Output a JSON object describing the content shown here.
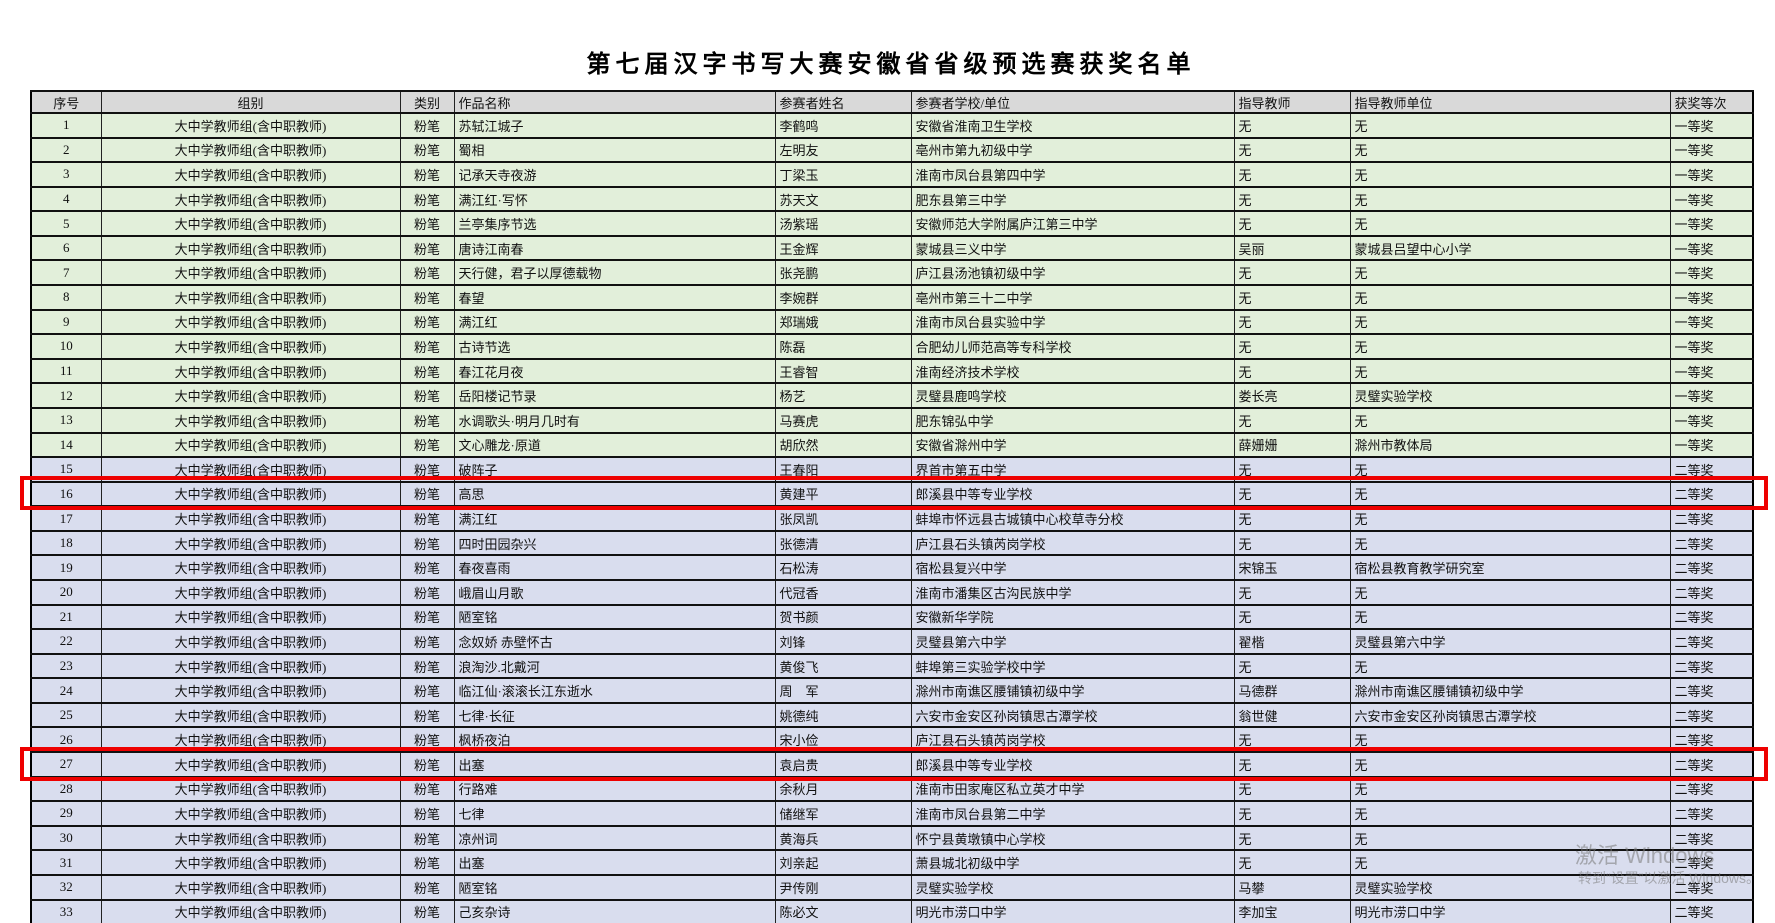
{
  "page_title": "第七届汉字书写大赛安徽省省级预选赛获奖名单",
  "colors": {
    "header_bg": "#d9d9d9",
    "first_prize_bg": "#e2efda",
    "second_prize_bg": "#d9ddee",
    "highlight_border": "#ee0000"
  },
  "watermark": {
    "line1": "激活 Windows",
    "line2": "转到“设置”以激活 Windows。"
  },
  "highlighted_rows": [
    16,
    27
  ],
  "table": {
    "columns": [
      {
        "key": "no",
        "label": "序号"
      },
      {
        "key": "group",
        "label": "组别"
      },
      {
        "key": "category",
        "label": "类别"
      },
      {
        "key": "work",
        "label": "作品名称"
      },
      {
        "key": "name",
        "label": "参赛者姓名"
      },
      {
        "key": "school",
        "label": "参赛者学校/单位"
      },
      {
        "key": "teacher",
        "label": "指导教师"
      },
      {
        "key": "teacher_unit",
        "label": "指导教师单位"
      },
      {
        "key": "award",
        "label": "获奖等次"
      }
    ],
    "rows": [
      {
        "no": "1",
        "group": "大中学教师组(含中职教师)",
        "category": "粉笔",
        "work": "苏轼江城子",
        "name": "李鹤鸣",
        "school": "安徽省淮南卫生学校",
        "teacher": "无",
        "teacher_unit": "无",
        "award": "一等奖"
      },
      {
        "no": "2",
        "group": "大中学教师组(含中职教师)",
        "category": "粉笔",
        "work": "蜀相",
        "name": "左明友",
        "school": "亳州市第九初级中学",
        "teacher": "无",
        "teacher_unit": "无",
        "award": "一等奖"
      },
      {
        "no": "3",
        "group": "大中学教师组(含中职教师)",
        "category": "粉笔",
        "work": "记承天寺夜游",
        "name": "丁梁玉",
        "school": "淮南市凤台县第四中学",
        "teacher": "无",
        "teacher_unit": "无",
        "award": "一等奖"
      },
      {
        "no": "4",
        "group": "大中学教师组(含中职教师)",
        "category": "粉笔",
        "work": "满江红·写怀",
        "name": "苏天文",
        "school": "肥东县第三中学",
        "teacher": "无",
        "teacher_unit": "无",
        "award": "一等奖"
      },
      {
        "no": "5",
        "group": "大中学教师组(含中职教师)",
        "category": "粉笔",
        "work": "兰亭集序节选",
        "name": "汤紫瑶",
        "school": "安徽师范大学附属庐江第三中学",
        "teacher": "无",
        "teacher_unit": "无",
        "award": "一等奖"
      },
      {
        "no": "6",
        "group": "大中学教师组(含中职教师)",
        "category": "粉笔",
        "work": "唐诗江南春",
        "name": "王金辉",
        "school": "蒙城县三义中学",
        "teacher": "吴丽",
        "teacher_unit": "蒙城县吕望中心小学",
        "award": "一等奖"
      },
      {
        "no": "7",
        "group": "大中学教师组(含中职教师)",
        "category": "粉笔",
        "work": "天行健，君子以厚德载物",
        "name": "张尧鹏",
        "school": "庐江县汤池镇初级中学",
        "teacher": "无",
        "teacher_unit": "无",
        "award": "一等奖"
      },
      {
        "no": "8",
        "group": "大中学教师组(含中职教师)",
        "category": "粉笔",
        "work": "春望",
        "name": "李婉群",
        "school": "亳州市第三十二中学",
        "teacher": "无",
        "teacher_unit": "无",
        "award": "一等奖"
      },
      {
        "no": "9",
        "group": "大中学教师组(含中职教师)",
        "category": "粉笔",
        "work": "满江红",
        "name": "郑瑞娥",
        "school": "淮南市凤台县实验中学",
        "teacher": "无",
        "teacher_unit": "无",
        "award": "一等奖"
      },
      {
        "no": "10",
        "group": "大中学教师组(含中职教师)",
        "category": "粉笔",
        "work": "古诗节选",
        "name": "陈磊",
        "school": "合肥幼儿师范高等专科学校",
        "teacher": "无",
        "teacher_unit": "无",
        "award": "一等奖"
      },
      {
        "no": "11",
        "group": "大中学教师组(含中职教师)",
        "category": "粉笔",
        "work": "春江花月夜",
        "name": "王睿智",
        "school": "淮南经济技术学校",
        "teacher": "无",
        "teacher_unit": "无",
        "award": "一等奖"
      },
      {
        "no": "12",
        "group": "大中学教师组(含中职教师)",
        "category": "粉笔",
        "work": "岳阳楼记节录",
        "name": "杨艺",
        "school": "灵璧县鹿鸣学校",
        "teacher": "娄长亮",
        "teacher_unit": "灵璧实验学校",
        "award": "一等奖"
      },
      {
        "no": "13",
        "group": "大中学教师组(含中职教师)",
        "category": "粉笔",
        "work": "水调歌头·明月几时有",
        "name": "马赛虎",
        "school": "肥东锦弘中学",
        "teacher": "无",
        "teacher_unit": "无",
        "award": "一等奖"
      },
      {
        "no": "14",
        "group": "大中学教师组(含中职教师)",
        "category": "粉笔",
        "work": "文心雕龙·原道",
        "name": "胡欣然",
        "school": "安徽省滁州中学",
        "teacher": "薛姗姗",
        "teacher_unit": "滁州市教体局",
        "award": "一等奖"
      },
      {
        "no": "15",
        "group": "大中学教师组(含中职教师)",
        "category": "粉笔",
        "work": "破阵子",
        "name": "王春阳",
        "school": "界首市第五中学",
        "teacher": "无",
        "teacher_unit": "无",
        "award": "二等奖"
      },
      {
        "no": "16",
        "group": "大中学教师组(含中职教师)",
        "category": "粉笔",
        "work": "高思",
        "name": "黄建平",
        "school": "郎溪县中等专业学校",
        "teacher": "无",
        "teacher_unit": "无",
        "award": "二等奖"
      },
      {
        "no": "17",
        "group": "大中学教师组(含中职教师)",
        "category": "粉笔",
        "work": "满江红",
        "name": "张凤凯",
        "school": "蚌埠市怀远县古城镇中心校草寺分校",
        "teacher": "无",
        "teacher_unit": "无",
        "award": "二等奖"
      },
      {
        "no": "18",
        "group": "大中学教师组(含中职教师)",
        "category": "粉笔",
        "work": "四时田园杂兴",
        "name": "张德清",
        "school": "庐江县石头镇芮岗学校",
        "teacher": "无",
        "teacher_unit": "无",
        "award": "二等奖"
      },
      {
        "no": "19",
        "group": "大中学教师组(含中职教师)",
        "category": "粉笔",
        "work": "春夜喜雨",
        "name": "石松涛",
        "school": "宿松县复兴中学",
        "teacher": "宋锦玉",
        "teacher_unit": "宿松县教育教学研究室",
        "award": "二等奖"
      },
      {
        "no": "20",
        "group": "大中学教师组(含中职教师)",
        "category": "粉笔",
        "work": "峨眉山月歌",
        "name": "代冠香",
        "school": "淮南市潘集区古沟民族中学",
        "teacher": "无",
        "teacher_unit": "无",
        "award": "二等奖"
      },
      {
        "no": "21",
        "group": "大中学教师组(含中职教师)",
        "category": "粉笔",
        "work": "陋室铭",
        "name": "贺书颜",
        "school": "安徽新华学院",
        "teacher": "无",
        "teacher_unit": "无",
        "award": "二等奖"
      },
      {
        "no": "22",
        "group": "大中学教师组(含中职教师)",
        "category": "粉笔",
        "work": "念奴娇 赤壁怀古",
        "name": "刘锋",
        "school": "灵璧县第六中学",
        "teacher": "翟楷",
        "teacher_unit": "灵璧县第六中学",
        "award": "二等奖"
      },
      {
        "no": "23",
        "group": "大中学教师组(含中职教师)",
        "category": "粉笔",
        "work": "浪淘沙.北戴河",
        "name": "黄俊飞",
        "school": "蚌埠第三实验学校中学",
        "teacher": "无",
        "teacher_unit": "无",
        "award": "二等奖"
      },
      {
        "no": "24",
        "group": "大中学教师组(含中职教师)",
        "category": "粉笔",
        "work": "临江仙·滚滚长江东逝水",
        "name": "周　军",
        "school": "滁州市南谯区腰铺镇初级中学",
        "teacher": "马德群",
        "teacher_unit": "滁州市南谯区腰铺镇初级中学",
        "award": "二等奖"
      },
      {
        "no": "25",
        "group": "大中学教师组(含中职教师)",
        "category": "粉笔",
        "work": "七律·长征",
        "name": "姚德纯",
        "school": "六安市金安区孙岗镇思古潭学校",
        "teacher": "翁世健",
        "teacher_unit": "六安市金安区孙岗镇思古潭学校",
        "award": "二等奖"
      },
      {
        "no": "26",
        "group": "大中学教师组(含中职教师)",
        "category": "粉笔",
        "work": "枫桥夜泊",
        "name": "宋小俭",
        "school": "庐江县石头镇芮岗学校",
        "teacher": "无",
        "teacher_unit": "无",
        "award": "二等奖"
      },
      {
        "no": "27",
        "group": "大中学教师组(含中职教师)",
        "category": "粉笔",
        "work": "出塞",
        "name": "袁启贵",
        "school": "郎溪县中等专业学校",
        "teacher": "无",
        "teacher_unit": "无",
        "award": "二等奖"
      },
      {
        "no": "28",
        "group": "大中学教师组(含中职教师)",
        "category": "粉笔",
        "work": "行路难",
        "name": "余秋月",
        "school": "淮南市田家庵区私立英才中学",
        "teacher": "无",
        "teacher_unit": "无",
        "award": "二等奖"
      },
      {
        "no": "29",
        "group": "大中学教师组(含中职教师)",
        "category": "粉笔",
        "work": "七律",
        "name": "储继军",
        "school": "淮南市凤台县第二中学",
        "teacher": "无",
        "teacher_unit": "无",
        "award": "二等奖"
      },
      {
        "no": "30",
        "group": "大中学教师组(含中职教师)",
        "category": "粉笔",
        "work": "凉州词",
        "name": "黄海兵",
        "school": "怀宁县黄墩镇中心学校",
        "teacher": "无",
        "teacher_unit": "无",
        "award": "二等奖"
      },
      {
        "no": "31",
        "group": "大中学教师组(含中职教师)",
        "category": "粉笔",
        "work": "出塞",
        "name": "刘亲起",
        "school": "萧县城北初级中学",
        "teacher": "无",
        "teacher_unit": "无",
        "award": "二等奖"
      },
      {
        "no": "32",
        "group": "大中学教师组(含中职教师)",
        "category": "粉笔",
        "work": "陋室铭",
        "name": "尹传刚",
        "school": "灵璧实验学校",
        "teacher": "马攀",
        "teacher_unit": "灵璧实验学校",
        "award": "二等奖"
      },
      {
        "no": "33",
        "group": "大中学教师组(含中职教师)",
        "category": "粉笔",
        "work": "己亥杂诗",
        "name": "陈必文",
        "school": "明光市涝口中学",
        "teacher": "李加宝",
        "teacher_unit": "明光市涝口中学",
        "award": "二等奖"
      }
    ]
  }
}
